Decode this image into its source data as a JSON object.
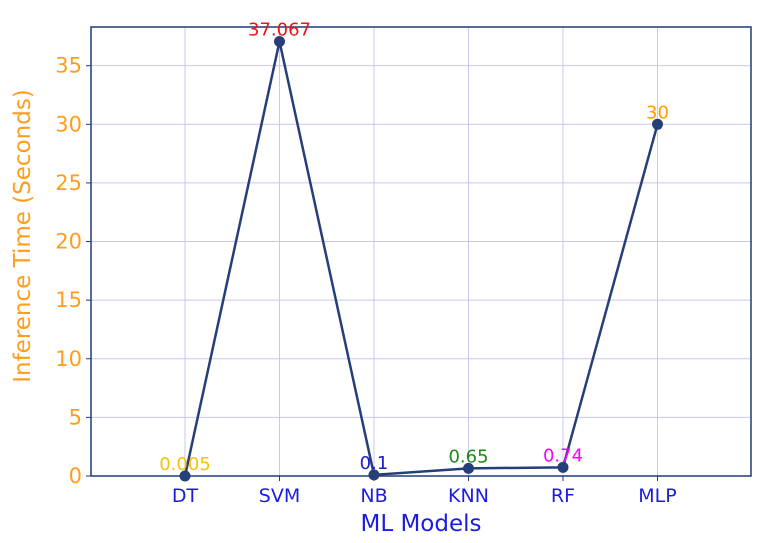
{
  "chart_data": {
    "type": "line",
    "title": "",
    "xlabel": "ML Models",
    "ylabel": "Inference Time (Seconds)",
    "categories": [
      "DT",
      "SVM",
      "NB",
      "KNN",
      "RF",
      "MLP"
    ],
    "series": [
      {
        "values": [
          0.005,
          37.067,
          0.1,
          0.65,
          0.74,
          30
        ]
      }
    ],
    "data_labels": [
      "0.005",
      "37.067",
      "0.1",
      "0.65",
      "0.74",
      "30"
    ],
    "label_colors": [
      "#f5c400",
      "#e8141c",
      "#1c1cc8",
      "#1a8a1a",
      "#ff00ff",
      "#ff9d00"
    ],
    "line_color": "#263f78",
    "axis_label_colors": {
      "x": "#1c1ce0",
      "y": "#ff9d1c"
    },
    "tick_color_x": "#1c1ce0",
    "tick_color_y": "#ff9d1c",
    "frame_color": "#1e3a78",
    "grid_color": "#c8c8f0",
    "grid": true,
    "ylim": [
      0,
      38.3
    ],
    "yticks": [
      0,
      5,
      10,
      15,
      20,
      25,
      30,
      35
    ]
  }
}
